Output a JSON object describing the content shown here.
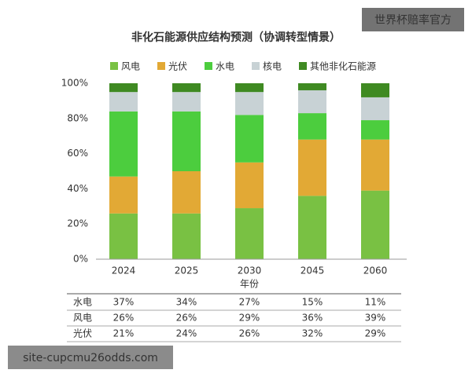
{
  "chart_data": {
    "type": "stacked_bar",
    "title": "非化石能源供应结构预测（协调转型情景）",
    "x_label": "年份",
    "categories": [
      "2024",
      "2025",
      "2030",
      "2045",
      "2060"
    ],
    "series": [
      {
        "name": "风电",
        "color": "#79c143",
        "values": [
          26,
          26,
          29,
          36,
          39
        ],
        "value_labels": [
          "26%",
          "26%",
          "29%",
          "36%",
          "39%"
        ]
      },
      {
        "name": "光伏",
        "color": "#e2a935",
        "values": [
          21,
          24,
          26,
          32,
          29
        ],
        "value_labels": [
          "21%",
          "24%",
          "26%",
          "32%",
          "29%"
        ]
      },
      {
        "name": "水电",
        "color": "#4ccd3e",
        "values": [
          37,
          34,
          27,
          15,
          11
        ],
        "value_labels": [
          "37%",
          "34%",
          "27%",
          "15%",
          "11%"
        ]
      },
      {
        "name": "核电",
        "color": "#c8d2d5",
        "values": [
          11,
          11,
          13,
          13,
          13
        ]
      },
      {
        "name": "其他非化石能源",
        "color": "#3f8a22",
        "values": [
          5,
          5,
          5,
          4,
          8
        ]
      }
    ],
    "ylim": [
      0,
      100
    ],
    "yticks": [
      {
        "value": 0,
        "label": "0%"
      },
      {
        "value": 20,
        "label": "20%"
      },
      {
        "value": 40,
        "label": "40%"
      },
      {
        "value": 60,
        "label": "60%"
      },
      {
        "value": 80,
        "label": "80%"
      },
      {
        "value": 100,
        "label": "100%"
      }
    ],
    "table_rows": [
      2,
      0,
      1
    ]
  },
  "watermarks": [
    "世界杯赔率官方",
    "site-cupcmu26odds.com"
  ]
}
